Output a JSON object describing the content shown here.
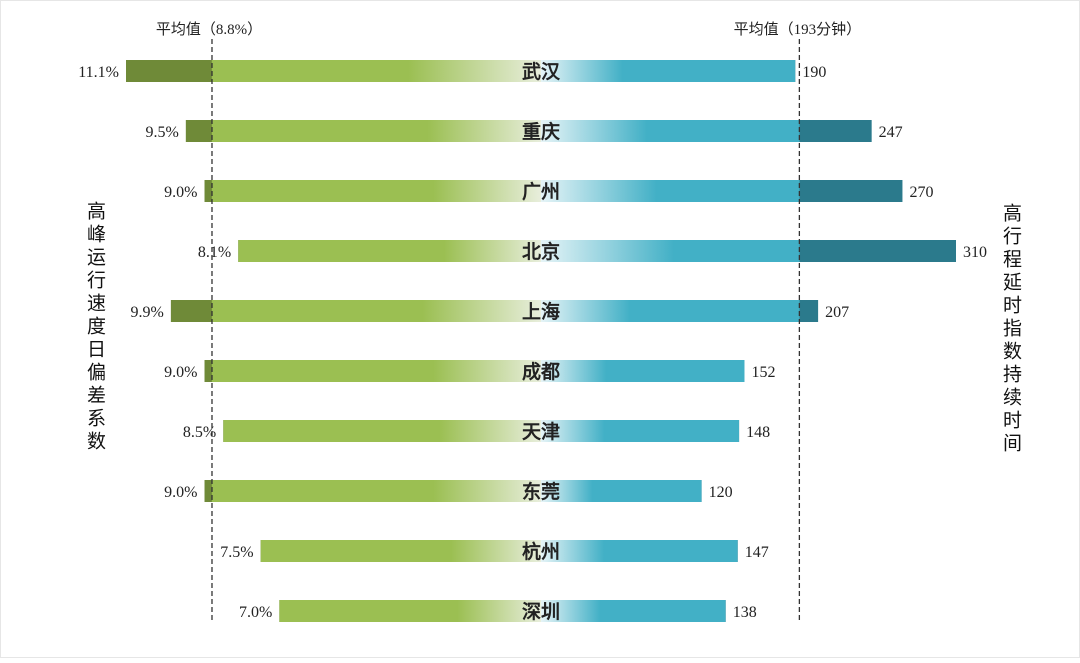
{
  "chart_data": {
    "type": "bar",
    "orientation": "horizontal-butterfly",
    "categories": [
      "武汉",
      "重庆",
      "广州",
      "北京",
      "上海",
      "成都",
      "天津",
      "东莞",
      "杭州",
      "深圳"
    ],
    "series": [
      {
        "name": "高峰运行速度日偏差系数",
        "values": [
          11.1,
          9.5,
          9.0,
          8.1,
          9.9,
          9.0,
          8.5,
          9.0,
          7.5,
          7.0
        ],
        "labels": [
          "11.1%",
          "9.5%",
          "9.0%",
          "8.1%",
          "9.9%",
          "9.0%",
          "8.5%",
          "9.0%",
          "7.5%",
          "7.0%"
        ],
        "reference": 8.8,
        "reference_label": "平均值（8.8%）",
        "scale_max": 11.1,
        "color_light": "#e8eedc",
        "color_mid": "#9bbf52",
        "color_dark": "#6f8a38"
      },
      {
        "name": "高行程延时指数持续时间",
        "values": [
          190,
          247,
          270,
          310,
          207,
          152,
          148,
          120,
          147,
          138
        ],
        "labels": [
          "190",
          "247",
          "270",
          "310",
          "207",
          "152",
          "148",
          "120",
          "147",
          "138"
        ],
        "reference": 193,
        "reference_label": "平均值（193分钟）",
        "scale_max": 310,
        "color_light": "#e6f4f7",
        "color_mid": "#42b0c6",
        "color_dark": "#2b7a8c"
      }
    ],
    "grid": false
  }
}
